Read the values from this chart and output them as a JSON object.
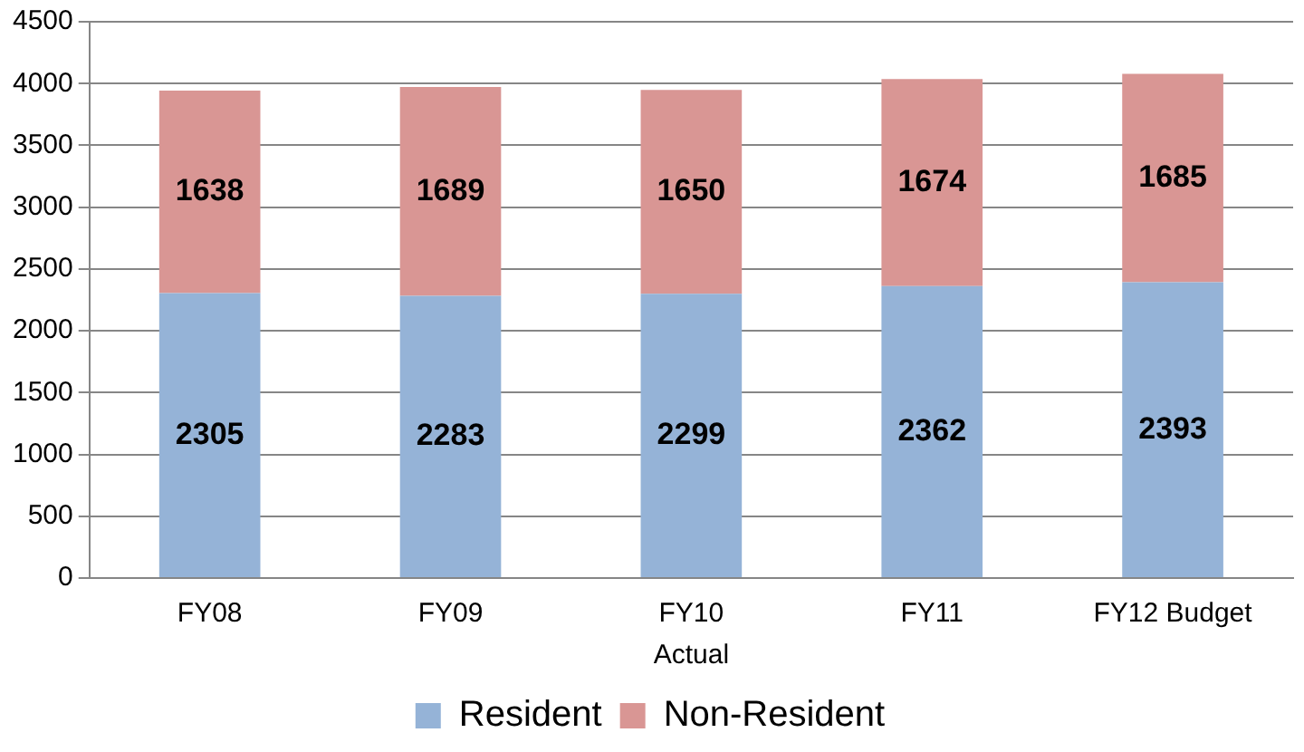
{
  "chart_data": {
    "type": "bar",
    "stacked": true,
    "xlabel": "Actual",
    "categories": [
      "FY08",
      "FY09",
      "FY10",
      "FY11",
      "FY12 Budget"
    ],
    "series": [
      {
        "name": "Resident",
        "color": "#95b3d7",
        "values": [
          2305,
          2283,
          2299,
          2362,
          2393
        ]
      },
      {
        "name": "Non-Resident",
        "color": "#d99694",
        "values": [
          1638,
          1689,
          1650,
          1674,
          1685
        ]
      }
    ],
    "ylim": [
      0,
      4500
    ],
    "yticks": [
      0,
      500,
      1000,
      1500,
      2000,
      2500,
      3000,
      3500,
      4000,
      4500
    ],
    "grid": "y",
    "legend": "bottom",
    "data_labels": true
  }
}
